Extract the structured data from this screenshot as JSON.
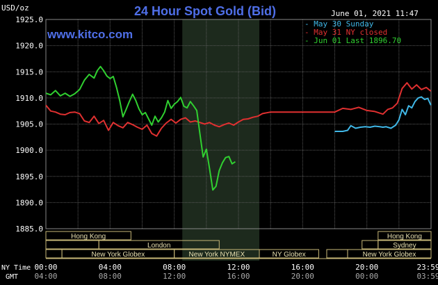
{
  "title": "24 Hour Spot Gold (Bid)",
  "unit_label": "USD/oz",
  "timestamp": "June 01, 2021 11:47",
  "watermark": "www.kitco.com",
  "colors": {
    "background": "#000000",
    "grid": "#5a5a5a",
    "title": "#4f6fe8",
    "watermark": "#4f6fe8",
    "session_box": "#c8b878",
    "session_text": "#e8e0b0",
    "shade": "#1d2a1d",
    "axis_text": "#ffffff"
  },
  "chart_data": {
    "type": "line",
    "title": "24 Hour Spot Gold (Bid)",
    "ylabel": "USD/oz",
    "xlabel": "",
    "ylim": [
      1885,
      1925
    ],
    "y_ticks": [
      "1925.0",
      "1920.0",
      "1915.0",
      "1910.0",
      "1905.0",
      "1900.0",
      "1895.0",
      "1890.0",
      "1885.0"
    ],
    "x_ticks_ny": [
      "00:00",
      "04:00",
      "08:00",
      "12:00",
      "16:00",
      "20:00",
      "23:59"
    ],
    "x_ticks_gmt": [
      "04:00",
      "08:00",
      "12:00",
      "16:00",
      "20:00",
      "00:00",
      "03:59"
    ],
    "x_row_labels": {
      "ny": "NY Time",
      "gmt": "GMT"
    },
    "xlim_hours": [
      0,
      24
    ],
    "shaded_range_hours": [
      8.5,
      13.3
    ],
    "legend_position": "top-right",
    "series": [
      {
        "name": "May 30 Sunday",
        "color": "#40b8e8",
        "x": [
          18.0,
          18.5,
          18.8,
          19.0,
          19.3,
          19.6,
          19.9,
          20.2,
          20.5,
          20.8,
          21.0,
          21.2,
          21.5,
          21.8,
          22.0,
          22.2,
          22.4,
          22.6,
          22.8,
          23.0,
          23.2,
          23.4,
          23.6,
          23.8,
          23.99
        ],
        "y": [
          1903.6,
          1903.6,
          1903.8,
          1904.7,
          1904.2,
          1904.4,
          1904.5,
          1904.4,
          1904.6,
          1904.5,
          1904.4,
          1904.5,
          1904.2,
          1904.8,
          1905.8,
          1907.8,
          1906.8,
          1908.5,
          1908.1,
          1909.3,
          1910.0,
          1910.2,
          1909.7,
          1909.9,
          1908.6
        ]
      },
      {
        "name": "May 31 NY closed",
        "color": "#e03030",
        "x": [
          0.0,
          0.3,
          0.6,
          0.9,
          1.2,
          1.5,
          1.8,
          2.1,
          2.4,
          2.7,
          3.0,
          3.3,
          3.6,
          3.9,
          4.2,
          4.5,
          4.8,
          5.1,
          5.4,
          5.7,
          6.0,
          6.3,
          6.6,
          6.9,
          7.2,
          7.5,
          7.8,
          8.1,
          8.4,
          8.7,
          9.0,
          9.3,
          9.6,
          9.9,
          10.2,
          10.5,
          10.8,
          11.1,
          11.4,
          11.7,
          12.0,
          12.3,
          12.6,
          12.9,
          13.2,
          13.5,
          14.0,
          15.0,
          16.0,
          17.0,
          18.0,
          18.5,
          19.0,
          19.5,
          20.0,
          20.5,
          21.0,
          21.3,
          21.6,
          21.9,
          22.2,
          22.5,
          22.8,
          23.1,
          23.4,
          23.7,
          23.99
        ],
        "y": [
          1908.6,
          1907.5,
          1907.3,
          1906.9,
          1906.8,
          1907.2,
          1907.3,
          1907.0,
          1905.6,
          1905.3,
          1906.5,
          1905.1,
          1905.7,
          1903.8,
          1905.3,
          1904.7,
          1904.3,
          1905.3,
          1904.9,
          1904.4,
          1904.0,
          1904.8,
          1903.2,
          1902.7,
          1904.2,
          1905.2,
          1905.9,
          1905.2,
          1905.9,
          1906.2,
          1905.4,
          1905.6,
          1905.3,
          1905.0,
          1905.3,
          1904.8,
          1904.5,
          1904.9,
          1905.2,
          1904.8,
          1905.4,
          1905.9,
          1906.0,
          1906.3,
          1906.5,
          1907.0,
          1907.3,
          1907.3,
          1907.3,
          1907.3,
          1907.3,
          1908.0,
          1907.8,
          1908.2,
          1907.6,
          1907.4,
          1906.9,
          1907.8,
          1908.1,
          1909.0,
          1911.8,
          1912.9,
          1911.7,
          1912.5,
          1911.6,
          1912.0,
          1911.3
        ]
      },
      {
        "name": "Jun 01 Last 1896.70",
        "color": "#30d030",
        "x": [
          0.0,
          0.3,
          0.6,
          0.9,
          1.2,
          1.5,
          1.8,
          2.1,
          2.4,
          2.7,
          3.0,
          3.2,
          3.4,
          3.6,
          3.8,
          4.0,
          4.2,
          4.4,
          4.6,
          4.8,
          5.0,
          5.2,
          5.4,
          5.6,
          5.8,
          6.0,
          6.2,
          6.4,
          6.6,
          6.8,
          7.0,
          7.2,
          7.4,
          7.6,
          7.8,
          8.0,
          8.2,
          8.4,
          8.6,
          8.8,
          9.0,
          9.2,
          9.4,
          9.6,
          9.8,
          10.0,
          10.2,
          10.4,
          10.6,
          10.8,
          11.0,
          11.2,
          11.4,
          11.6,
          11.8,
          12.0,
          12.2,
          12.4,
          12.6,
          12.8,
          13.0,
          13.2,
          13.4,
          13.6,
          13.8,
          14.0,
          14.2,
          14.4,
          14.6,
          14.8,
          15.0,
          15.2,
          15.4,
          15.6,
          15.8,
          16.0
        ],
        "y": [
          1910.9,
          1910.6,
          1911.4,
          1910.4,
          1910.9,
          1910.3,
          1910.8,
          1911.6,
          1913.4,
          1914.5,
          1913.8,
          1915.2,
          1916.0,
          1915.2,
          1914.2,
          1913.7,
          1914.1,
          1912.0,
          1909.5,
          1906.4,
          1907.8,
          1909.3,
          1910.7,
          1909.5,
          1907.9,
          1906.8,
          1907.2,
          1906.0,
          1904.8,
          1906.5,
          1905.4,
          1906.2,
          1907.3,
          1909.5,
          1908.0,
          1908.8,
          1909.3,
          1910.1,
          1908.4,
          1908.1,
          1909.3,
          1908.5,
          1907.6,
          1903.1,
          1898.7,
          1900.2,
          1896.5,
          1892.4,
          1893.1,
          1896.1,
          1897.6,
          1898.6,
          1898.8,
          1897.4,
          1897.8,
          1898.0,
          1897.9,
          1897.5,
          1897.0,
          1896.9,
          1896.6,
          1896.8,
          1897.1,
          1897.3,
          1897.1,
          1897.0,
          1896.9,
          1896.8,
          1896.7,
          1896.6,
          1896.7,
          1896.8,
          1896.7,
          1896.9,
          1896.8,
          1896.7
        ],
        "x_visible_end": 11.9
      }
    ]
  },
  "sessions": {
    "row1": [
      {
        "label": "Hong Kong",
        "start": 0,
        "end": 5.3,
        "tail": false
      },
      {
        "label": "Hong Kong",
        "start": 20.7,
        "end": 24,
        "tail": false
      }
    ],
    "row2": [
      {
        "label": "",
        "start": 0,
        "end": 3.3,
        "tail": true
      },
      {
        "label": "London",
        "start": 3.3,
        "end": 10.8,
        "tail": false
      },
      {
        "label": "",
        "start": 19.7,
        "end": 20.7,
        "tail": true
      },
      {
        "label": "Sydney",
        "start": 20.7,
        "end": 24,
        "tail": false
      }
    ],
    "row3": [
      {
        "label": "",
        "start": 0,
        "end": 1.0,
        "tail": true
      },
      {
        "label": "New York Globex",
        "start": 1.0,
        "end": 8.0,
        "tail": false
      },
      {
        "label": "New York NYMEX",
        "start": 8.0,
        "end": 13.3,
        "tail": false
      },
      {
        "label": "NY Globex",
        "start": 13.3,
        "end": 17.0,
        "tail": false
      },
      {
        "label": "",
        "start": 17.5,
        "end": 18.8,
        "tail": true
      },
      {
        "label": "New York Globex",
        "start": 18.8,
        "end": 24,
        "tail": false
      }
    ]
  }
}
